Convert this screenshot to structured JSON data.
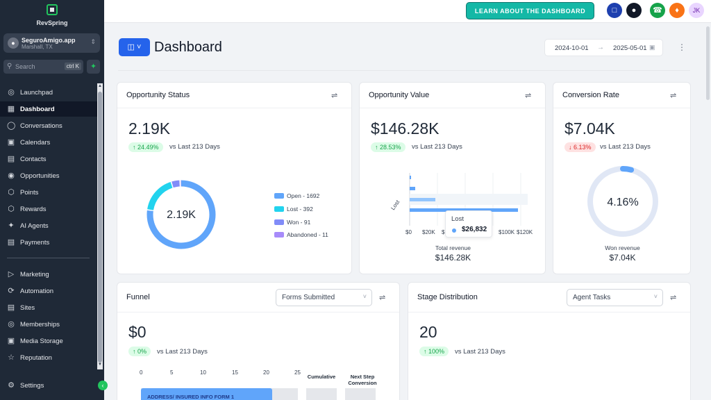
{
  "app": {
    "brand": "RevSpring"
  },
  "account": {
    "name": "SeguroAmigo.app",
    "location": "Marshall, TX"
  },
  "search": {
    "placeholder": "Search",
    "shortcut": "ctrl K"
  },
  "sidebar": {
    "items": [
      {
        "label": "Launchpad",
        "icon": "rocket-icon"
      },
      {
        "label": "Dashboard",
        "icon": "dashboard-icon",
        "active": true
      },
      {
        "label": "Conversations",
        "icon": "chat-icon"
      },
      {
        "label": "Calendars",
        "icon": "calendar-icon"
      },
      {
        "label": "Contacts",
        "icon": "contacts-icon"
      },
      {
        "label": "Opportunities",
        "icon": "funnel-icon"
      },
      {
        "label": "Points",
        "icon": "cube-icon"
      },
      {
        "label": "Rewards",
        "icon": "gift-icon"
      },
      {
        "label": "AI Agents",
        "icon": "sparkle-icon"
      },
      {
        "label": "Payments",
        "icon": "receipt-icon"
      },
      {
        "label": "Marketing",
        "icon": "megaphone-icon"
      },
      {
        "label": "Automation",
        "icon": "automation-icon"
      },
      {
        "label": "Sites",
        "icon": "sites-icon"
      },
      {
        "label": "Memberships",
        "icon": "membership-icon"
      },
      {
        "label": "Media Storage",
        "icon": "image-icon"
      },
      {
        "label": "Reputation",
        "icon": "star-icon"
      }
    ],
    "settings_label": "Settings"
  },
  "topbar": {
    "learn_label": "LEARN ABOUT THE DASHBOARD",
    "user_initials": "JK",
    "colors": {
      "learn": "#14b8a6",
      "chat": "#1e40af",
      "bot": "#111827",
      "phone": "#16a34a",
      "bell": "#f97316",
      "avatar": "#e9d5ff"
    }
  },
  "page": {
    "title": "Dashboard",
    "date_start": "2024-10-01",
    "date_end": "2025-05-01"
  },
  "cards": {
    "opportunity_status": {
      "title": "Opportunity Status",
      "value": "2.19K",
      "change": "24.49%",
      "vs": "vs Last 213 Days",
      "donut_center": "2.19K",
      "legend": [
        {
          "label": "Open - 1692",
          "value": 1692,
          "color": "#60a5fa"
        },
        {
          "label": "Lost - 392",
          "value": 392,
          "color": "#22d3ee"
        },
        {
          "label": "Won - 91",
          "value": 91,
          "color": "#818cf8"
        },
        {
          "label": "Abandoned - 11",
          "value": 11,
          "color": "#a78bfa"
        }
      ]
    },
    "opportunity_value": {
      "title": "Opportunity Value",
      "value": "$146.28K",
      "change": "28.53%",
      "vs": "vs Last 213 Days",
      "y_label": "Lost",
      "x_ticks": [
        "$0",
        "$20K",
        "$",
        "$100K",
        "$120K"
      ],
      "tooltip_label": "Lost",
      "tooltip_value": "$26,832",
      "caption": "Total revenue",
      "caption_value": "$146.28K"
    },
    "conversion_rate": {
      "title": "Conversion Rate",
      "value": "$7.04K",
      "change": "6.13%",
      "vs": "vs Last 213 Days",
      "percent_label": "4.16%",
      "percent": 4.16,
      "caption": "Won revenue",
      "caption_value": "$7.04K"
    },
    "funnel": {
      "title": "Funnel",
      "select": "Forms Submitted",
      "value": "$0",
      "change": "0%",
      "vs": "vs Last 213 Days",
      "axis": [
        "0",
        "5",
        "10",
        "15",
        "20",
        "25"
      ],
      "col_cumulative": "Cumulative",
      "col_next_1": "Next Step",
      "col_next_2": "Conversion",
      "bar_label": "ADDRESS/ INSURED INFO FORM 1"
    },
    "stage_distribution": {
      "title": "Stage Distribution",
      "select": "Agent Tasks",
      "value": "20",
      "change": "100%",
      "vs": "vs Last 213 Days"
    }
  }
}
